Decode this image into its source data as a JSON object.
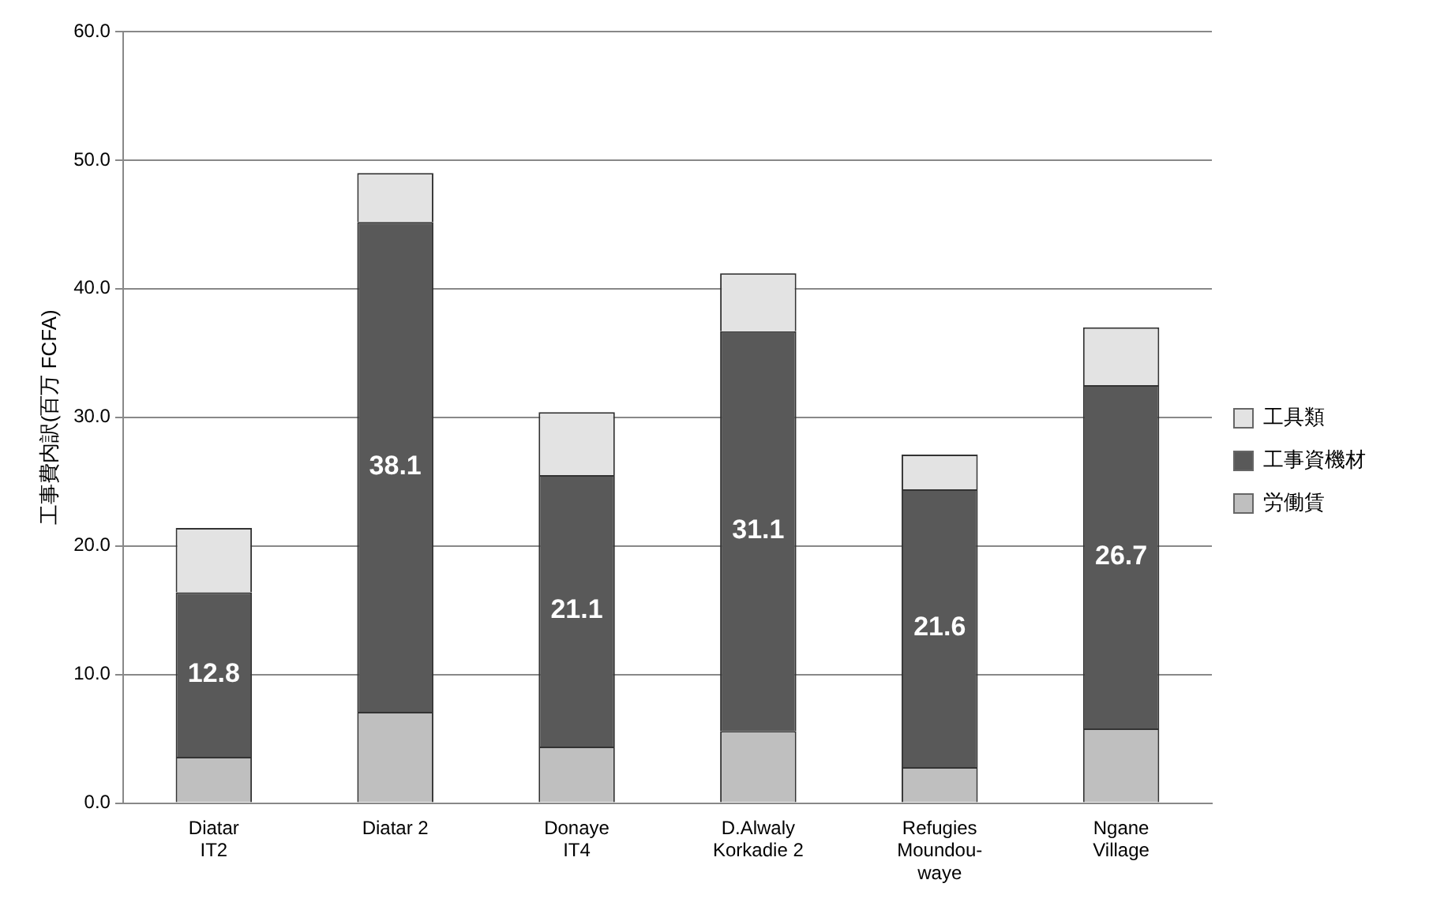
{
  "chart_data": {
    "type": "bar",
    "stacked": true,
    "ylabel": "工事費内訳(百万 FCFA)",
    "categories": [
      "Diatar\nIT2",
      "Diatar 2",
      "Donaye\nIT4",
      "D.Alwaly\nKorkadie 2",
      "Refugies\nMoundou-\nwaye",
      "Ngane\nVillage"
    ],
    "series": [
      {
        "name": "労働賃",
        "color": "#bfbfbf",
        "values": [
          3.6,
          7.1,
          4.4,
          5.6,
          2.8,
          5.8
        ]
      },
      {
        "name": "工事資機材",
        "color": "#595959",
        "values": [
          12.8,
          38.1,
          21.1,
          31.1,
          21.6,
          26.7
        ],
        "value_labels": [
          "12.8",
          "38.1",
          "21.1",
          "31.1",
          "21.6",
          "26.7"
        ]
      },
      {
        "name": "工具類",
        "color": "#e3e3e3",
        "values": [
          5.0,
          3.8,
          4.9,
          4.5,
          2.7,
          4.5
        ]
      }
    ],
    "ylim": [
      0,
      60
    ],
    "yticks": [
      {
        "value": 0,
        "label": "0.0"
      },
      {
        "value": 10,
        "label": "10.0"
      },
      {
        "value": 20,
        "label": "20.0"
      },
      {
        "value": 30,
        "label": "30.0"
      },
      {
        "value": 40,
        "label": "40.0"
      },
      {
        "value": 50,
        "label": "50.0"
      },
      {
        "value": 60,
        "label": "60.0"
      }
    ],
    "grid": "y",
    "legend": "right"
  }
}
